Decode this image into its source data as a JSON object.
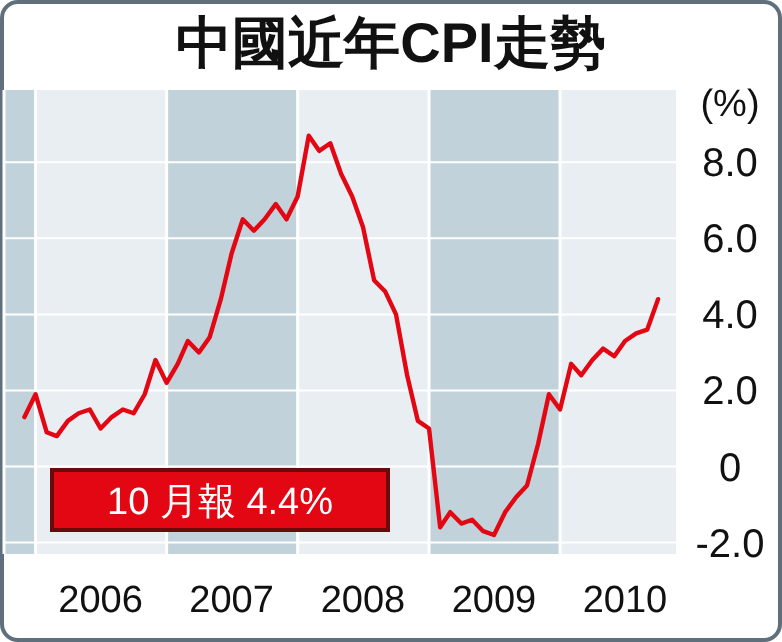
{
  "chart_data": {
    "type": "line",
    "title": "中國近年CPI走勢",
    "ylabel": "(%)",
    "x": [
      "2005-12",
      "2006-01",
      "2006-02",
      "2006-03",
      "2006-04",
      "2006-05",
      "2006-06",
      "2006-07",
      "2006-08",
      "2006-09",
      "2006-10",
      "2006-11",
      "2006-12",
      "2007-01",
      "2007-02",
      "2007-03",
      "2007-04",
      "2007-05",
      "2007-06",
      "2007-07",
      "2007-08",
      "2007-09",
      "2007-10",
      "2007-11",
      "2007-12",
      "2008-01",
      "2008-02",
      "2008-03",
      "2008-04",
      "2008-05",
      "2008-06",
      "2008-07",
      "2008-08",
      "2008-09",
      "2008-10",
      "2008-11",
      "2008-12",
      "2009-01",
      "2009-02",
      "2009-03",
      "2009-04",
      "2009-05",
      "2009-06",
      "2009-07",
      "2009-08",
      "2009-09",
      "2009-10",
      "2009-11",
      "2009-12",
      "2010-01",
      "2010-02",
      "2010-03",
      "2010-04",
      "2010-05",
      "2010-06",
      "2010-07",
      "2010-08",
      "2010-09",
      "2010-10"
    ],
    "series": [
      {
        "color": "#e30613",
        "values": [
          1.3,
          1.9,
          0.9,
          0.8,
          1.2,
          1.4,
          1.5,
          1.0,
          1.3,
          1.5,
          1.4,
          1.9,
          2.8,
          2.2,
          2.7,
          3.3,
          3.0,
          3.4,
          4.4,
          5.6,
          6.5,
          6.2,
          6.5,
          6.9,
          6.5,
          7.1,
          8.7,
          8.3,
          8.5,
          7.7,
          7.1,
          6.3,
          4.9,
          4.6,
          4.0,
          2.4,
          1.2,
          1.0,
          -1.6,
          -1.2,
          -1.5,
          -1.4,
          -1.7,
          -1.8,
          -1.2,
          -0.8,
          -0.5,
          0.6,
          1.9,
          1.5,
          2.7,
          2.4,
          2.8,
          3.1,
          2.9,
          3.3,
          3.5,
          3.6,
          4.4
        ]
      }
    ],
    "xlim": [
      "2005-10-05",
      "2010-11-20"
    ],
    "xticks": [
      {
        "value": "2006-07-01",
        "label": "2006"
      },
      {
        "value": "2007-07-01",
        "label": "2007"
      },
      {
        "value": "2008-07-01",
        "label": "2008"
      },
      {
        "value": "2009-07-01",
        "label": "2009"
      },
      {
        "value": "2010-07-01",
        "label": "2010"
      }
    ],
    "ylim": [
      -2.3,
      9.9
    ],
    "yticks": [
      {
        "value": -2,
        "label": "-2.0"
      },
      0,
      {
        "value": 2,
        "label": "2.0"
      },
      {
        "value": 4,
        "label": "4.0"
      },
      {
        "value": 6,
        "label": "6.0"
      },
      {
        "value": 8,
        "label": "8.0"
      }
    ],
    "grid": "y",
    "bands": [
      {
        "axis": "x",
        "from": "2005-10-05",
        "to": "2006-01-01",
        "color": "#c2d2da"
      },
      {
        "axis": "x",
        "from": "2007-01-01",
        "to": "2008-01-01",
        "color": "#c2d2da"
      },
      {
        "axis": "x",
        "from": "2009-01-01",
        "to": "2010-01-01",
        "color": "#c2d2da"
      }
    ],
    "annotations": [
      "10 月報 4.4%"
    ],
    "line_style": "solid",
    "marker": "none"
  }
}
